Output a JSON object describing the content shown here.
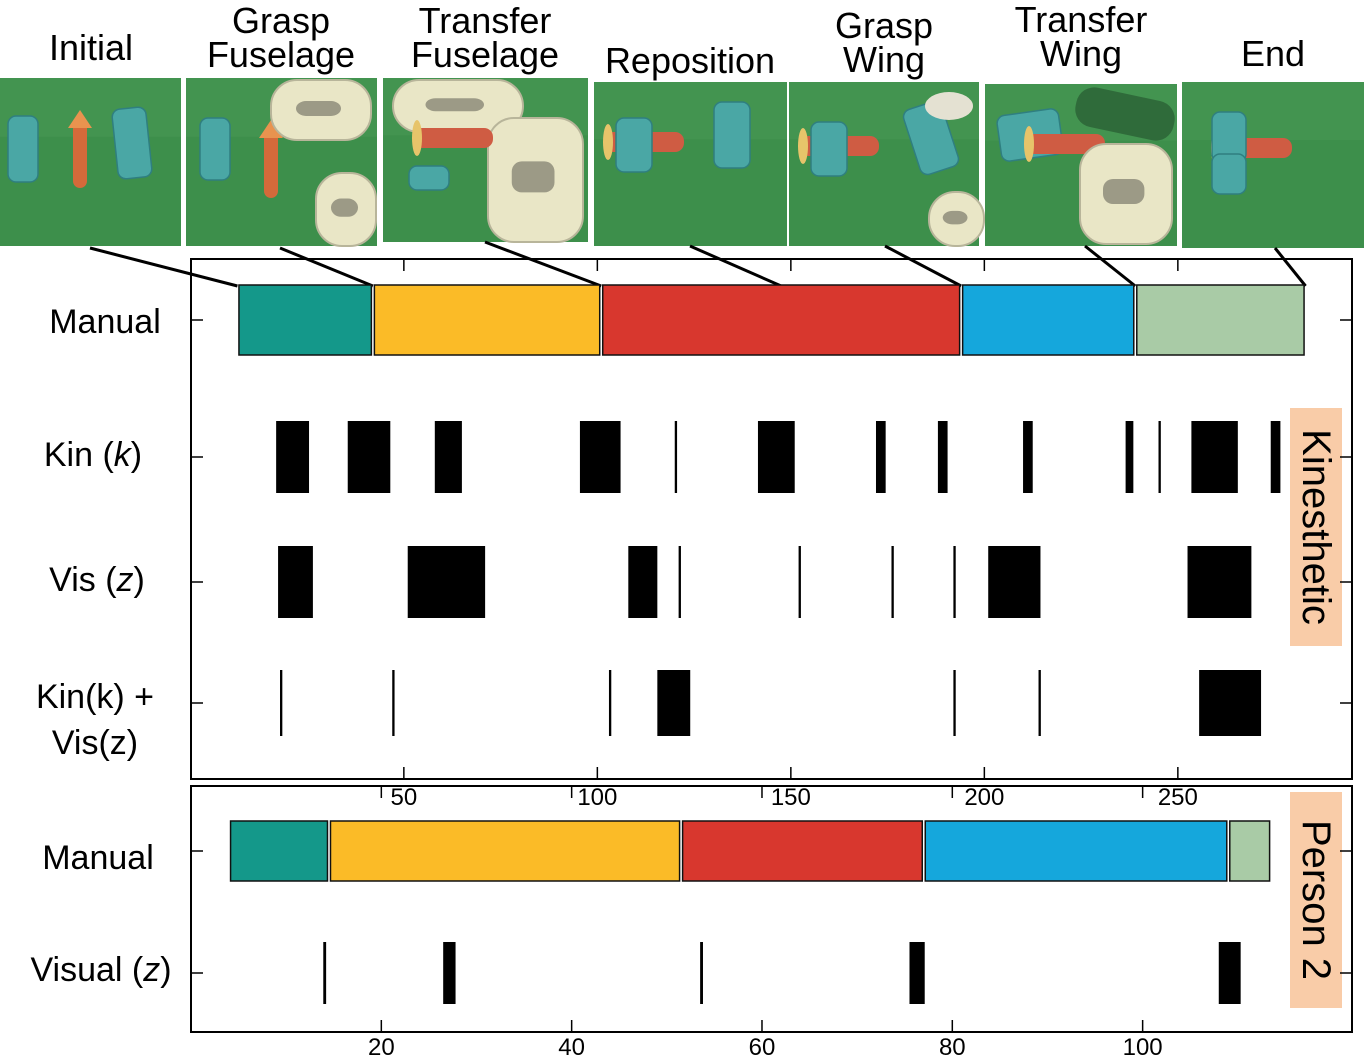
{
  "photos": [
    {
      "title": [
        "Initial"
      ],
      "scene": "initial"
    },
    {
      "title": [
        "Grasp",
        "Fuselage"
      ],
      "scene": "grasp-fuselage"
    },
    {
      "title": [
        "Transfer",
        "Fuselage"
      ],
      "scene": "transfer-fuselage"
    },
    {
      "title": [
        "Reposition"
      ],
      "scene": "reposition"
    },
    {
      "title": [
        "Grasp",
        "Wing"
      ],
      "scene": "grasp-wing"
    },
    {
      "title": [
        "Transfer",
        "Wing"
      ],
      "scene": "transfer-wing"
    },
    {
      "title": [
        "End"
      ],
      "scene": "end"
    }
  ],
  "colors": {
    "phase1": "#14988a",
    "phase2": "#fbbb27",
    "phase3": "#d8372e",
    "phase4": "#15a7dc",
    "phase5": "#a9cba6",
    "event": "#000000",
    "side_label_bg": "#f9cca8",
    "photo_green": "#3d8f4b"
  },
  "chart_data": [
    {
      "type": "timeline",
      "side_label": "Kinesthetic",
      "xlim": [
        -5,
        295
      ],
      "xticks": [
        50,
        100,
        150,
        200,
        250
      ],
      "rows": [
        {
          "label": [
            "Manual"
          ],
          "kind": "segments",
          "segments": [
            {
              "start": 7,
              "end": 42,
              "color": "phase1"
            },
            {
              "start": 42,
              "end": 101,
              "color": "phase2"
            },
            {
              "start": 101,
              "end": 194,
              "color": "phase3"
            },
            {
              "start": 194,
              "end": 239,
              "color": "phase4"
            },
            {
              "start": 239,
              "end": 283,
              "color": "phase5"
            }
          ]
        },
        {
          "label": [
            "Kin (",
            "k",
            ")"
          ],
          "kind": "events",
          "events": [
            {
              "start": 17,
              "end": 25.5
            },
            {
              "start": 35.5,
              "end": 46.5
            },
            {
              "start": 58,
              "end": 65
            },
            {
              "start": 95.5,
              "end": 106
            },
            {
              "start": 120,
              "end": 120.6
            },
            {
              "start": 141.5,
              "end": 151
            },
            {
              "start": 172,
              "end": 174.5
            },
            {
              "start": 188,
              "end": 190.5
            },
            {
              "start": 210,
              "end": 212.5
            },
            {
              "start": 236.5,
              "end": 238.5
            },
            {
              "start": 245,
              "end": 245.6
            },
            {
              "start": 253.5,
              "end": 265.5
            },
            {
              "start": 274,
              "end": 276.5
            }
          ]
        },
        {
          "label": [
            "Vis (",
            "z",
            ")"
          ],
          "kind": "events",
          "events": [
            {
              "start": 17.5,
              "end": 26.5
            },
            {
              "start": 51,
              "end": 71
            },
            {
              "start": 108,
              "end": 115.5
            },
            {
              "start": 121,
              "end": 121.6
            },
            {
              "start": 152,
              "end": 152.6
            },
            {
              "start": 176,
              "end": 176.6
            },
            {
              "start": 192,
              "end": 192.6
            },
            {
              "start": 201,
              "end": 214.5
            },
            {
              "start": 252.5,
              "end": 269
            }
          ]
        },
        {
          "label": [
            "Kin(k) +",
            "Vis(z)"
          ],
          "kind": "events",
          "events": [
            {
              "start": 18,
              "end": 18.6
            },
            {
              "start": 47,
              "end": 47.6
            },
            {
              "start": 103,
              "end": 103.6
            },
            {
              "start": 115.5,
              "end": 124
            },
            {
              "start": 192,
              "end": 192.6
            },
            {
              "start": 214,
              "end": 214.6
            },
            {
              "start": 255.5,
              "end": 271.5
            }
          ]
        }
      ]
    },
    {
      "type": "timeline",
      "side_label": "Person 2",
      "xlim": [
        0,
        122
      ],
      "xticks": [
        20,
        40,
        60,
        80,
        100
      ],
      "rows": [
        {
          "label": [
            "Manual"
          ],
          "kind": "segments",
          "segments": [
            {
              "start": 4,
              "end": 14.5,
              "color": "phase1"
            },
            {
              "start": 14.5,
              "end": 51.5,
              "color": "phase2"
            },
            {
              "start": 51.5,
              "end": 77,
              "color": "phase3"
            },
            {
              "start": 77,
              "end": 109,
              "color": "phase4"
            },
            {
              "start": 109,
              "end": 113.5,
              "color": "phase5"
            }
          ]
        },
        {
          "label": [
            "Visual (",
            "z",
            ")"
          ],
          "kind": "events",
          "events": [
            {
              "start": 13.9,
              "end": 14.2
            },
            {
              "start": 26.5,
              "end": 27.8
            },
            {
              "start": 53.5,
              "end": 53.8
            },
            {
              "start": 75.5,
              "end": 77.1
            },
            {
              "start": 108,
              "end": 110.3
            }
          ]
        }
      ]
    }
  ]
}
